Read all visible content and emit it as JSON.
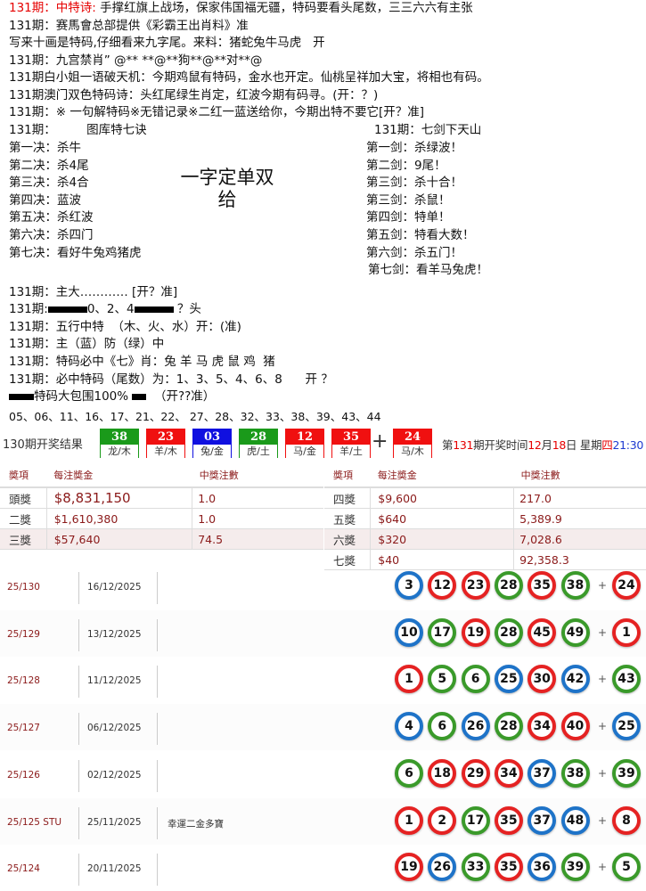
{
  "colors": {
    "red": "#e52222",
    "green": "#3a9a2a",
    "blue": "#1e73c8",
    "accent_red": "#e60000",
    "dark_red": "#8b1a1a"
  },
  "lines": {
    "l1_prefix": "131期：中特诗:",
    "l1_text": "手撑红旗上战场，保家伟国福无疆，特码要看头尾数，三三六六有主张",
    "l2": "131期：赛馬會总部提供《彩霸王出肖料》准",
    "l3": "写来十画是特码,仔细看来九字尾。来料：猪蛇兔牛马虎   开",
    "l4": "131期：九宫禁肖” @** **@**狗**@**对**@",
    "l5": "131期白小姐一语破天机：今期鸡鼠有特码，金水也开定。仙桃呈祥加大宝，将相也有码。",
    "l6": "131期澳门双色特码诗：头红尾绿生肖定，红波今期有码寻。(开：？)",
    "l7": "131期：※ 一句解特码※无错记录※二红一蓝送给你，今期出特不要它[开？准]",
    "l8_left": "131期：        图库特七诀",
    "l8_right": "131期：七剑下天山"
  },
  "jue": [
    "第一决：杀牛",
    "第二决：杀4尾",
    "第三决：杀4合",
    "第四决：蓝波",
    "第五决：杀红波",
    "第六决：杀四门",
    "第七决：看好牛兔鸡猪虎"
  ],
  "jian": [
    "第一剑：杀绿波！",
    "第二剑：9尾！",
    "第三剑：杀十合！",
    "第三剑：杀鼠！",
    "第四剑：特单！",
    "第五剑：特看大数！",
    "第六剑：杀五门！",
    "第七剑：看羊马兔虎！"
  ],
  "center_text": {
    "line1": "一字定单双",
    "line2": "给"
  },
  "lines2": {
    "m1": "131期：主大………… [开？准]",
    "m2_prefix": "131期:",
    "m2_mid": "0、2、4",
    "m2_suffix": " ？头",
    "m3": "131期：五行中特  （木、火、水）开：(准)",
    "m4": "131期：主（蓝）防（绿）中",
    "m5": "131期：特码必中《七》肖：兔 羊 马 虎 鼠 鸡  猪",
    "m6": "131期：必中特码（尾数）为：1、3、5、4、6、8      开 ？",
    "m7_mid": "特码大包围100% ",
    "m7_suffix": "  （开??准）",
    "m8": "05、06、11、16、17、21、22、 27、28、32、33、38、39、43、44"
  },
  "result": {
    "label": "130期开奖结果",
    "balls": [
      {
        "num": "38",
        "zodiac": "龙/木",
        "color": "#1a9a1a"
      },
      {
        "num": "23",
        "zodiac": "羊/木",
        "color": "#f01010"
      },
      {
        "num": "03",
        "zodiac": "兔/金",
        "color": "#1010e0"
      },
      {
        "num": "28",
        "zodiac": "虎/土",
        "color": "#1a9a1a"
      },
      {
        "num": "12",
        "zodiac": "马/金",
        "color": "#f01010"
      },
      {
        "num": "35",
        "zodiac": "羊/土",
        "color": "#f01010"
      }
    ],
    "plus": "+",
    "special": {
      "num": "24",
      "zodiac": "马/木",
      "color": "#f01010"
    },
    "next": {
      "p1": "第",
      "period": "131",
      "p2": "期开奖时间",
      "month": "12",
      "p3": "月",
      "day": "18",
      "p4": "日 星期",
      "weekday": "四",
      "time": "21:30"
    }
  },
  "prizes": {
    "headers": [
      "奬項",
      "每注奬金",
      "中獎注數"
    ],
    "left": [
      {
        "level": "頭獎",
        "amount": "$8,831,150",
        "count": "1.0"
      },
      {
        "level": "二獎",
        "amount": "$1,610,380",
        "count": "1.0"
      },
      {
        "level": "三獎",
        "amount": "$57,640",
        "count": "74.5"
      }
    ],
    "right": [
      {
        "level": "四獎",
        "amount": "$9,600",
        "count": "217.0"
      },
      {
        "level": "五獎",
        "amount": "$640",
        "count": "5,389.9"
      },
      {
        "level": "六獎",
        "amount": "$320",
        "count": "7,028.6"
      },
      {
        "level": "七獎",
        "amount": "$40",
        "count": "92,358.3"
      }
    ]
  },
  "history": [
    {
      "id": "25/130",
      "date": "16/12/2025",
      "name": "",
      "balls": [
        [
          "3",
          "b"
        ],
        [
          "12",
          "r"
        ],
        [
          "23",
          "r"
        ],
        [
          "28",
          "g"
        ],
        [
          "35",
          "r"
        ],
        [
          "38",
          "g"
        ]
      ],
      "special": [
        "24",
        "r"
      ]
    },
    {
      "id": "25/129",
      "date": "13/12/2025",
      "name": "",
      "balls": [
        [
          "10",
          "b"
        ],
        [
          "17",
          "g"
        ],
        [
          "19",
          "r"
        ],
        [
          "28",
          "g"
        ],
        [
          "45",
          "r"
        ],
        [
          "49",
          "g"
        ]
      ],
      "special": [
        "1",
        "r"
      ]
    },
    {
      "id": "25/128",
      "date": "11/12/2025",
      "name": "",
      "balls": [
        [
          "1",
          "r"
        ],
        [
          "5",
          "g"
        ],
        [
          "6",
          "g"
        ],
        [
          "25",
          "b"
        ],
        [
          "30",
          "r"
        ],
        [
          "42",
          "b"
        ]
      ],
      "special": [
        "43",
        "g"
      ]
    },
    {
      "id": "25/127",
      "date": "06/12/2025",
      "name": "",
      "balls": [
        [
          "4",
          "b"
        ],
        [
          "6",
          "g"
        ],
        [
          "26",
          "b"
        ],
        [
          "28",
          "g"
        ],
        [
          "34",
          "r"
        ],
        [
          "40",
          "r"
        ]
      ],
      "special": [
        "25",
        "b"
      ]
    },
    {
      "id": "25/126",
      "date": "02/12/2025",
      "name": "",
      "balls": [
        [
          "6",
          "g"
        ],
        [
          "18",
          "r"
        ],
        [
          "29",
          "r"
        ],
        [
          "34",
          "r"
        ],
        [
          "37",
          "b"
        ],
        [
          "38",
          "g"
        ]
      ],
      "special": [
        "39",
        "g"
      ]
    },
    {
      "id": "25/125 STU",
      "date": "25/11/2025",
      "name": "幸運二金多寶",
      "balls": [
        [
          "1",
          "r"
        ],
        [
          "2",
          "r"
        ],
        [
          "17",
          "g"
        ],
        [
          "35",
          "r"
        ],
        [
          "37",
          "b"
        ],
        [
          "48",
          "b"
        ]
      ],
      "special": [
        "8",
        "r"
      ]
    },
    {
      "id": "25/124",
      "date": "20/11/2025",
      "name": "",
      "balls": [
        [
          "19",
          "r"
        ],
        [
          "26",
          "b"
        ],
        [
          "33",
          "g"
        ],
        [
          "35",
          "r"
        ],
        [
          "36",
          "b"
        ],
        [
          "39",
          "g"
        ]
      ],
      "special": [
        "5",
        "g"
      ]
    }
  ],
  "history_plus": "+"
}
